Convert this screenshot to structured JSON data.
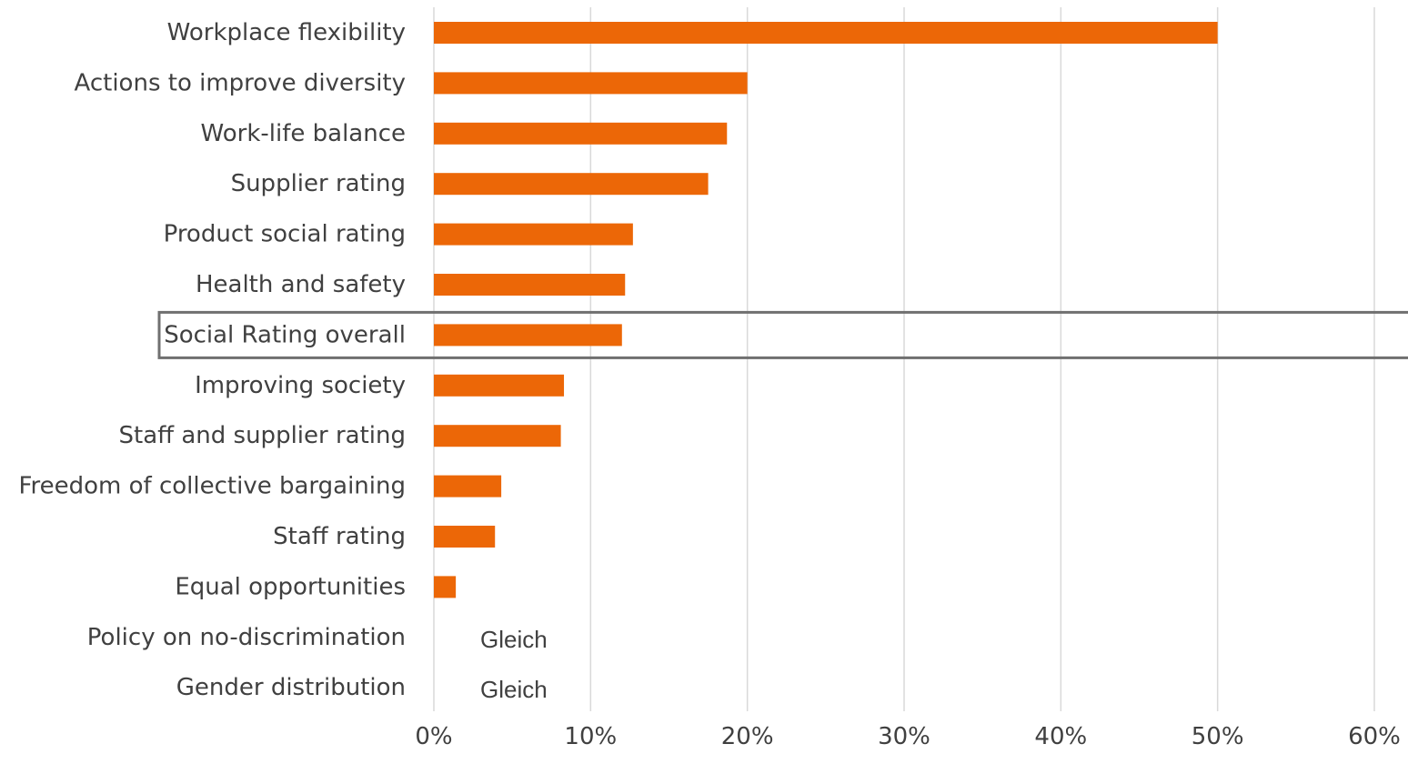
{
  "chart_data": {
    "type": "bar",
    "orientation": "horizontal",
    "categories": [
      "Workplace flexibility",
      "Actions to improve diversity",
      "Work-life balance",
      "Supplier rating",
      "Product social rating",
      "Health and safety",
      "Social Rating overall",
      "Improving society",
      "Staff and supplier rating",
      "Freedom of collective bargaining",
      "Staff rating",
      "Equal opportunities",
      "Policy on no-discrimination",
      "Gender distribution"
    ],
    "values": [
      0.5,
      0.2,
      0.187,
      0.175,
      0.127,
      0.122,
      0.12,
      0.083,
      0.081,
      0.043,
      0.039,
      0.014,
      null,
      null
    ],
    "annotations": [
      {
        "category": "Policy on no-discrimination",
        "text": "Gleich"
      },
      {
        "category": "Gender distribution",
        "text": "Gleich"
      }
    ],
    "highlight": "Social Rating overall",
    "xlim": [
      0,
      0.6
    ],
    "xticks": [
      0,
      0.1,
      0.2,
      0.3,
      0.4,
      0.5,
      0.6
    ],
    "xtick_labels": [
      "0%",
      "10%",
      "20%",
      "30%",
      "40%",
      "50%",
      "60%"
    ],
    "bar_color": "#ec6707",
    "grid": true,
    "title": "",
    "xlabel": "",
    "ylabel": ""
  }
}
